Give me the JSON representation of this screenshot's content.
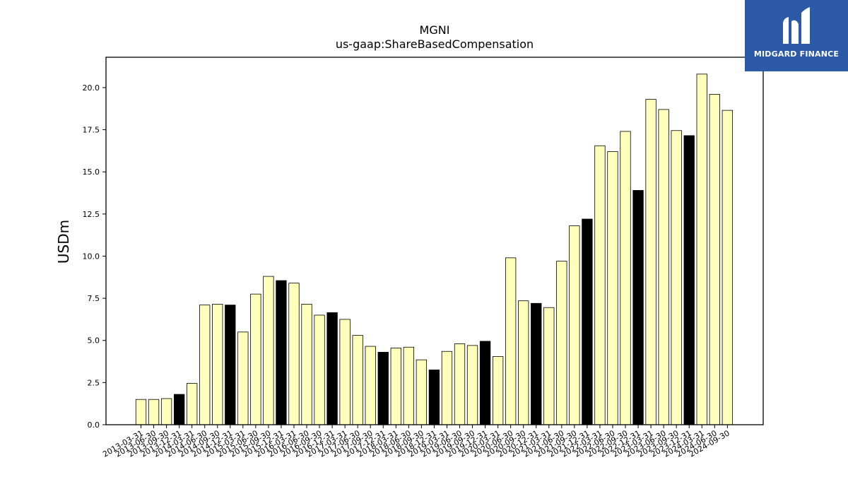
{
  "brand": {
    "name": "MIDGARD FINANCE",
    "bg_color": "#2c5aa8"
  },
  "chart_data": {
    "type": "bar",
    "title": "MGNI",
    "subtitle": "us-gaap:ShareBasedCompensation",
    "xlabel": "",
    "ylabel": "USDm",
    "ylim": [
      0,
      21.8
    ],
    "yticks": [
      0.0,
      2.5,
      5.0,
      7.5,
      10.0,
      12.5,
      15.0,
      17.5,
      20.0
    ],
    "ytick_labels": [
      "0.0",
      "2.5",
      "5.0",
      "7.5",
      "10.0",
      "12.5",
      "15.0",
      "17.5",
      "20.0"
    ],
    "grid": false,
    "colors": {
      "quarter": "#ffffbb",
      "year_end": "#000000",
      "edge": "#000000"
    },
    "categories": [
      "2013-03-31",
      "2013-06-30",
      "2013-09-30",
      "2013-12-31",
      "2014-03-31",
      "2014-06-30",
      "2014-09-30",
      "2014-12-31",
      "2015-03-31",
      "2015-06-30",
      "2015-09-30",
      "2015-12-31",
      "2016-03-31",
      "2016-06-30",
      "2016-09-30",
      "2016-12-31",
      "2017-03-31",
      "2017-06-30",
      "2017-09-30",
      "2017-12-31",
      "2018-03-31",
      "2018-06-30",
      "2018-09-30",
      "2018-12-31",
      "2019-03-31",
      "2019-06-30",
      "2019-09-30",
      "2019-12-31",
      "2020-03-31",
      "2020-06-30",
      "2020-09-30",
      "2020-12-31",
      "2021-03-31",
      "2021-06-30",
      "2021-09-30",
      "2021-12-31",
      "2022-03-31",
      "2022-06-30",
      "2022-09-30",
      "2022-12-31",
      "2023-03-31",
      "2023-06-30",
      "2023-09-30",
      "2023-12-31",
      "2024-03-31",
      "2024-06-30",
      "2024-09-30"
    ],
    "values": [
      1.5,
      1.5,
      1.55,
      1.8,
      2.45,
      7.1,
      7.15,
      7.1,
      5.5,
      7.75,
      8.8,
      8.55,
      8.4,
      7.15,
      6.5,
      6.65,
      6.25,
      5.3,
      4.65,
      4.3,
      4.55,
      4.6,
      3.85,
      3.25,
      4.35,
      4.8,
      4.7,
      4.95,
      4.05,
      9.9,
      7.35,
      7.2,
      6.95,
      9.7,
      11.8,
      12.2,
      16.55,
      16.2,
      17.4,
      13.9,
      19.3,
      18.7,
      17.45,
      17.15,
      20.8,
      19.6,
      18.65
    ],
    "year_end": [
      false,
      false,
      false,
      true,
      false,
      false,
      false,
      true,
      false,
      false,
      false,
      true,
      false,
      false,
      false,
      true,
      false,
      false,
      false,
      true,
      false,
      false,
      false,
      true,
      false,
      false,
      false,
      true,
      false,
      false,
      false,
      true,
      false,
      false,
      false,
      true,
      false,
      false,
      false,
      true,
      false,
      false,
      false,
      true,
      false,
      false,
      false
    ]
  }
}
